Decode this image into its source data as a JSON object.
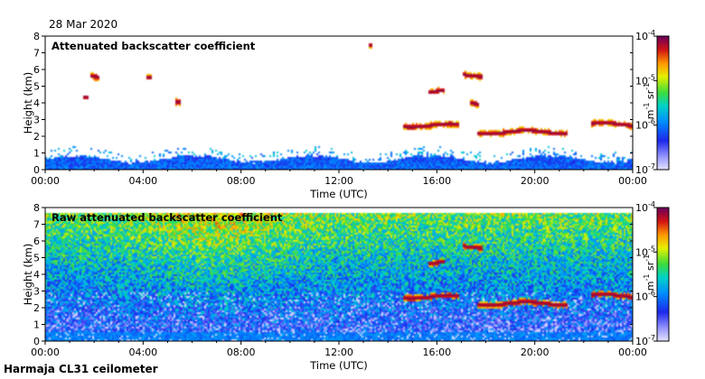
{
  "date": "28 Mar 2020",
  "footer": "Harmaja CL31 ceilometer",
  "chart_data": [
    {
      "type": "heatmap",
      "title": "Attenuated backscatter coefficient",
      "xlabel": "Time (UTC)",
      "ylabel": "Height (km)",
      "xticks": [
        "00:00",
        "04:00",
        "08:00",
        "12:00",
        "16:00",
        "20:00",
        "00:00"
      ],
      "xlim_hours": [
        0,
        24
      ],
      "ylim": [
        0,
        8
      ],
      "yticks": [
        0,
        1,
        2,
        3,
        4,
        5,
        6,
        7,
        8
      ],
      "colorbar": {
        "unit_base": "m",
        "unit_exp1": "-1",
        "unit_base2": " sr",
        "unit_exp2": "-1",
        "log_min": -7,
        "log_max": -4,
        "ticks": [
          {
            "base": "10",
            "exp": "-4",
            "log": -4
          },
          {
            "base": "10",
            "exp": "-5",
            "log": -5
          },
          {
            "base": "10",
            "exp": "-6",
            "log": -6
          },
          {
            "base": "10",
            "exp": "-7",
            "log": -7
          }
        ]
      },
      "features": {
        "boundary_layer_top_km": 0.7,
        "cloud_layers": [
          {
            "t0": 14.6,
            "t1": 16.9,
            "h": 2.7
          },
          {
            "t0": 17.6,
            "t1": 21.3,
            "h": 2.3
          },
          {
            "t0": 22.3,
            "t1": 24.0,
            "h": 2.75
          },
          {
            "t0": 15.6,
            "t1": 16.3,
            "h": 4.7
          },
          {
            "t0": 17.0,
            "t1": 17.8,
            "h": 5.7
          },
          {
            "t0": 17.3,
            "t1": 17.7,
            "h": 4.05
          },
          {
            "t0": 1.8,
            "t1": 2.2,
            "h": 5.7
          },
          {
            "t0": 1.5,
            "t1": 1.7,
            "h": 4.4
          },
          {
            "t0": 4.1,
            "t1": 4.3,
            "h": 5.5
          },
          {
            "t0": 5.3,
            "t1": 5.5,
            "h": 4.2
          },
          {
            "t0": 13.2,
            "t1": 13.3,
            "h": 7.4
          }
        ]
      }
    },
    {
      "type": "heatmap",
      "title": "Raw attenuated backscatter coefficient",
      "xlabel": "Time (UTC)",
      "ylabel": "Height (km)",
      "xticks": [
        "00:00",
        "04:00",
        "08:00",
        "12:00",
        "16:00",
        "20:00",
        "00:00"
      ],
      "xlim_hours": [
        0,
        24
      ],
      "ylim": [
        0,
        8
      ],
      "yticks": [
        0,
        1,
        2,
        3,
        4,
        5,
        6,
        7,
        8
      ],
      "colorbar": {
        "unit_base": "m",
        "unit_exp1": "-1",
        "unit_base2": " sr",
        "unit_exp2": "-1",
        "log_min": -7,
        "log_max": -4,
        "ticks": [
          {
            "base": "10",
            "exp": "-4",
            "log": -4
          },
          {
            "base": "10",
            "exp": "-5",
            "log": -5
          },
          {
            "base": "10",
            "exp": "-6",
            "log": -6
          },
          {
            "base": "10",
            "exp": "-7",
            "log": -7
          }
        ]
      },
      "features": {
        "noise_top_km": 7.7,
        "cloud_layers": [
          {
            "t0": 14.6,
            "t1": 16.9,
            "h": 2.7
          },
          {
            "t0": 17.6,
            "t1": 21.3,
            "h": 2.3
          },
          {
            "t0": 22.3,
            "t1": 24.0,
            "h": 2.75
          },
          {
            "t0": 15.6,
            "t1": 16.3,
            "h": 4.7
          },
          {
            "t0": 17.0,
            "t1": 17.8,
            "h": 5.7
          }
        ]
      }
    }
  ]
}
